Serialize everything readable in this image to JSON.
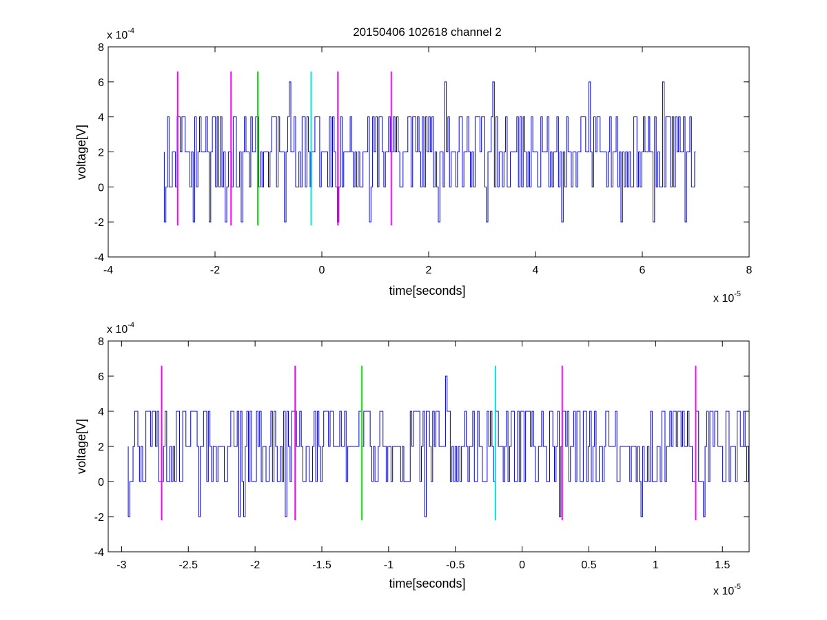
{
  "figure": {
    "title": "20150406 102618 channel 2",
    "background": "#ffffff"
  },
  "colors": {
    "signal": "#0000cc",
    "magenta": "#ff00ff",
    "green": "#00ee00",
    "cyan": "#00e5e5",
    "axes": "#000000"
  },
  "chart_data": [
    {
      "type": "line",
      "title": "20150406 102618 channel 2",
      "xlabel": "time[seconds]",
      "ylabel": "voltage[V]",
      "x_exponent_label": "x 10",
      "x_exponent": "-5",
      "y_exponent_label": "x 10",
      "y_exponent": "-4",
      "xlim": [
        -4,
        8
      ],
      "ylim": [
        -4,
        8
      ],
      "xticks": [
        -4,
        -2,
        0,
        2,
        4,
        6,
        8
      ],
      "xtick_labels": [
        "-4",
        "-2",
        "0",
        "2",
        "4",
        "6",
        "8"
      ],
      "yticks": [
        -4,
        -2,
        0,
        2,
        4,
        6,
        8
      ],
      "ytick_labels": [
        "-4",
        "-2",
        "0",
        "2",
        "4",
        "6",
        "8"
      ],
      "grid": false,
      "signal": {
        "x_start": -2.95,
        "x_end": 7.0,
        "levels": [
          -2,
          0,
          2,
          4,
          6
        ],
        "dominant_level": 2,
        "spikes_to_6": [
          -0.6,
          2.3,
          3.2,
          5.0,
          6.4,
          6.8
        ],
        "dips_to_minus_2": [
          -2.95,
          -2.4,
          -2.1,
          -1.8,
          -1.5,
          -0.7,
          0.3,
          0.9,
          2.2,
          3.1,
          4.5,
          5.6,
          6.2,
          6.8
        ],
        "description_levels_note": ""
      },
      "markers": [
        {
          "x": -2.7,
          "y_min": -2.2,
          "y_max": 6.6,
          "color": "magenta"
        },
        {
          "x": -1.7,
          "y_min": -2.2,
          "y_max": 6.6,
          "color": "magenta"
        },
        {
          "x": -1.2,
          "y_min": -2.2,
          "y_max": 6.6,
          "color": "green"
        },
        {
          "x": -0.2,
          "y_min": -2.2,
          "y_max": 6.6,
          "color": "cyan"
        },
        {
          "x": 0.3,
          "y_min": -2.2,
          "y_max": 6.6,
          "color": "magenta"
        },
        {
          "x": 1.3,
          "y_min": -2.2,
          "y_max": 6.6,
          "color": "magenta"
        }
      ]
    },
    {
      "type": "line",
      "title": "",
      "xlabel": "time[seconds]",
      "ylabel": "voltage[V]",
      "x_exponent_label": "x 10",
      "x_exponent": "-5",
      "y_exponent_label": "x 10",
      "y_exponent": "-4",
      "xlim": [
        -3.1,
        1.7
      ],
      "ylim": [
        -4,
        8
      ],
      "xticks": [
        -3,
        -2.5,
        -2,
        -1.5,
        -1,
        -0.5,
        0,
        0.5,
        1,
        1.5
      ],
      "xtick_labels": [
        "-3",
        "-2.5",
        "-2",
        "-1.5",
        "-1",
        "-0.5",
        "0",
        "0.5",
        "1",
        "1.5"
      ],
      "yticks": [
        -4,
        -2,
        0,
        2,
        4,
        6,
        8
      ],
      "ytick_labels": [
        "-4",
        "-2",
        "0",
        "2",
        "4",
        "6",
        "8"
      ],
      "grid": false,
      "signal": {
        "x_start": -2.95,
        "x_end": 1.7,
        "levels": [
          -2,
          0,
          2,
          4,
          6
        ],
        "dominant_level": 2,
        "spikes_to_6": [
          -0.58
        ],
        "dips_to_minus_2": [
          -2.95,
          -2.42,
          -2.12,
          -2.09,
          -1.78,
          -0.73,
          0.27,
          0.89,
          1.35
        ]
      },
      "markers": [
        {
          "x": -2.7,
          "y_min": -2.2,
          "y_max": 6.6,
          "color": "magenta"
        },
        {
          "x": -1.7,
          "y_min": -2.2,
          "y_max": 6.6,
          "color": "magenta"
        },
        {
          "x": -1.2,
          "y_min": -2.2,
          "y_max": 6.6,
          "color": "green"
        },
        {
          "x": -0.2,
          "y_min": -2.2,
          "y_max": 6.6,
          "color": "cyan"
        },
        {
          "x": 0.3,
          "y_min": -2.2,
          "y_max": 6.6,
          "color": "magenta"
        },
        {
          "x": 1.3,
          "y_min": -2.2,
          "y_max": 6.6,
          "color": "magenta"
        }
      ]
    }
  ]
}
